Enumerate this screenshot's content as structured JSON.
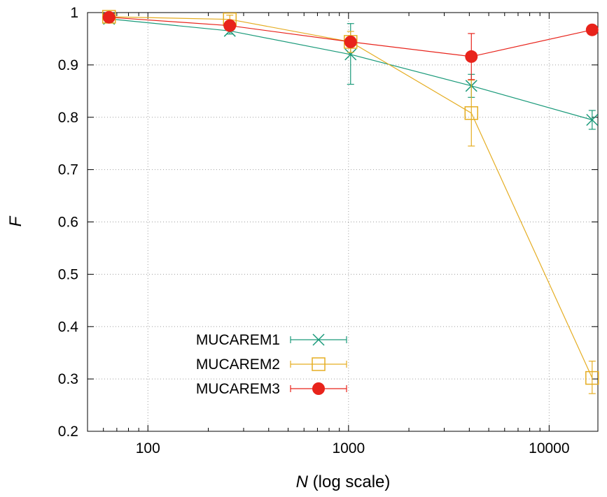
{
  "chart_data": {
    "type": "line",
    "title": "",
    "xlabel": {
      "var": "N",
      "suffix": " (log scale)"
    },
    "ylabel": "F",
    "x_scale": "log",
    "xlim": [
      50,
      17500
    ],
    "ylim": [
      0.2,
      1.0
    ],
    "x_ticks": [
      100,
      1000,
      10000
    ],
    "y_ticks": [
      0.2,
      0.3,
      0.4,
      0.5,
      0.6,
      0.7,
      0.8,
      0.9,
      1.0
    ],
    "y_tick_labels": [
      "0.2",
      "0.3",
      "0.4",
      "0.5",
      "0.6",
      "0.7",
      "0.8",
      "0.9",
      "1"
    ],
    "grid": true,
    "legend_position": "bottom-left",
    "x": [
      64,
      256,
      1024,
      4096,
      16384
    ],
    "series": [
      {
        "name": "MUCAREM1",
        "color": "#1a9a7a",
        "marker": "x",
        "values": [
          0.988,
          0.965,
          0.92,
          0.86,
          0.795
        ],
        "err_low": [
          0.983,
          0.959,
          0.863,
          0.838,
          0.777
        ],
        "err_high": [
          0.993,
          0.971,
          0.979,
          0.882,
          0.813
        ]
      },
      {
        "name": "MUCAREM2",
        "color": "#e5ad22",
        "marker": "open-square",
        "values": [
          0.992,
          0.987,
          0.944,
          0.808,
          0.302
        ],
        "err_low": [
          0.985,
          0.98,
          0.924,
          0.745,
          0.272
        ],
        "err_high": [
          0.999,
          0.995,
          0.964,
          0.871,
          0.334
        ]
      },
      {
        "name": "MUCAREM3",
        "color": "#e8231b",
        "marker": "filled-circle",
        "values": [
          0.991,
          0.975,
          0.944,
          0.916,
          0.967
        ],
        "err_low": [
          0.986,
          0.969,
          0.936,
          0.872,
          0.962
        ],
        "err_high": [
          0.996,
          0.981,
          0.952,
          0.96,
          0.972
        ]
      }
    ]
  }
}
